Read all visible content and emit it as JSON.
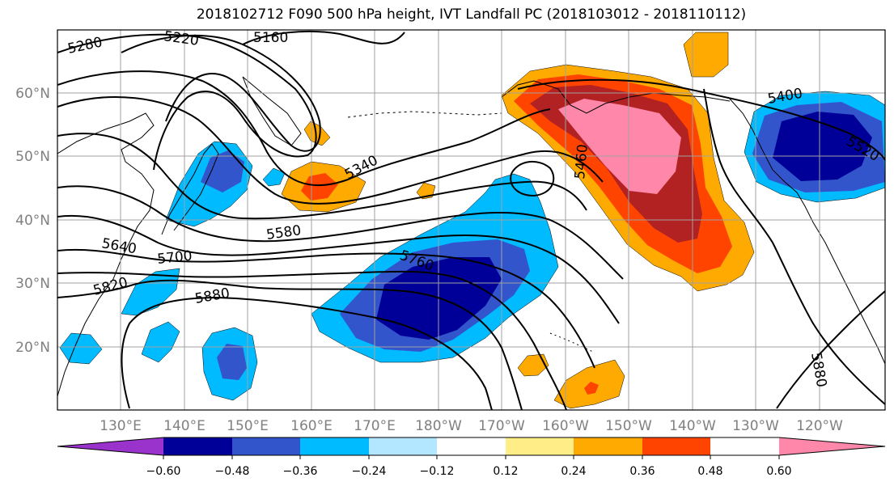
{
  "title": "2018102712 F090 500 hPa height, IVT Landfall PC (2018103012 - 2018110112)",
  "colors": {
    "frame": "#000000",
    "grid": "#a0a0a0",
    "coast": "#000000",
    "tick_label": "#808080"
  },
  "map": {
    "lat_labels": [
      "60°N",
      "50°N",
      "40°N",
      "30°N",
      "20°N"
    ],
    "lon_labels": [
      "130°E",
      "140°E",
      "150°E",
      "160°E",
      "170°E",
      "180°W",
      "170°W",
      "160°W",
      "150°W",
      "140°W",
      "130°W",
      "120°W"
    ],
    "contour_labels": [
      "5280",
      "5220",
      "5160",
      "5400",
      "5520",
      "5340",
      "5460",
      "5580",
      "5640",
      "5700",
      "5760",
      "5820",
      "5880",
      "5880"
    ]
  },
  "colorbar": {
    "colors": [
      "#9933cc",
      "#000099",
      "#3355cc",
      "#00bbff",
      "#b3e6ff",
      "#ffffff",
      "#ffee88",
      "#ffaa00",
      "#ff4400",
      "#b22222",
      "#ff88aa"
    ],
    "tick_labels": [
      "−0.60",
      "−0.48",
      "−0.36",
      "−0.24",
      "−0.12",
      "0.12",
      "0.24",
      "0.36",
      "0.48",
      "0.60"
    ]
  }
}
